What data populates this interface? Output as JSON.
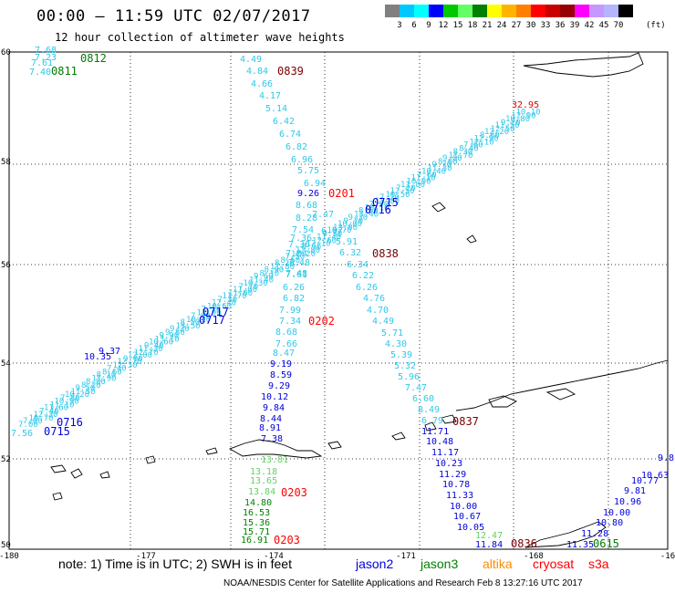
{
  "header": {
    "title": "00:00 — 11:59 UTC 02/07/2017",
    "subtitle": "12 hour collection of altimeter wave heights"
  },
  "colorbar": {
    "labels": [
      "3",
      "6",
      "9",
      "12",
      "15",
      "18",
      "21",
      "24",
      "27",
      "30",
      "33",
      "36",
      "39",
      "42",
      "45",
      "70"
    ],
    "colors": [
      "#808080",
      "#00c8ff",
      "#00ffff",
      "#0000ff",
      "#00c800",
      "#64ff64",
      "#008000",
      "#ffff00",
      "#ffb400",
      "#ff8000",
      "#ff0000",
      "#c80000",
      "#960000",
      "#ff00ff",
      "#c896ff",
      "#b4b4ff",
      "#000000"
    ],
    "units": "(ft)"
  },
  "map": {
    "lat_labels": [
      "60",
      "58",
      "56",
      "54",
      "52",
      "50"
    ],
    "lon_labels": [
      "-180",
      "-177",
      "-174",
      "-171",
      "-168",
      "-16"
    ]
  },
  "times": [
    {
      "t": "0812",
      "c": "#007a00"
    },
    {
      "t": "0811",
      "c": "#007a00"
    },
    {
      "t": "0839",
      "c": "#7a0000"
    },
    {
      "t": "0201",
      "c": "#ff0000"
    },
    {
      "t": "0715",
      "c": "#0000dd"
    },
    {
      "t": "0716",
      "c": "#0000dd"
    },
    {
      "t": "0838",
      "c": "#7a0000"
    },
    {
      "t": "0717",
      "c": "#0000dd"
    },
    {
      "t": "0717",
      "c": "#0000dd"
    },
    {
      "t": "0202",
      "c": "#ff0000"
    },
    {
      "t": "0716",
      "c": "#0000dd"
    },
    {
      "t": "0715",
      "c": "#0000dd"
    },
    {
      "t": "0837",
      "c": "#7a0000"
    },
    {
      "t": "0203",
      "c": "#ff0000"
    },
    {
      "t": "0203",
      "c": "#ff0000"
    },
    {
      "t": "0836",
      "c": "#7a0000"
    },
    {
      "t": "0615",
      "c": "#007a00"
    }
  ],
  "tracks": {
    "cryosat_top_label": "32.95",
    "topleft": [
      "7.68",
      "7.23",
      "7.61",
      "7.40"
    ],
    "cryosat_lower": [
      "9.37",
      "10.35",
      "7.56"
    ],
    "track_a": [
      "4.49",
      "4.84",
      "4.66",
      "4.17",
      "5.14",
      "6.42",
      "6.74",
      "6.82",
      "6.96",
      "5.75",
      "6.94",
      "9.26",
      "8.68",
      "8.28",
      "7.54",
      "7.36",
      "7.36",
      "7.04",
      "7.48",
      "7.48",
      "7.61",
      "6.26",
      "6.82",
      "7.99",
      "7.34",
      "8.68",
      "7.66",
      "8.47",
      "9.19",
      "8.59",
      "9.29",
      "10.12",
      "9.84",
      "8.44",
      "8.91",
      "7.38"
    ],
    "track_b": [
      "7.47",
      "6.07",
      "5.91",
      "6.32",
      "6.34",
      "6.22",
      "6.26",
      "4.76",
      "4.70",
      "4.49",
      "5.71",
      "4.30",
      "5.39",
      "5.32",
      "5.96",
      "7.47",
      "6.60",
      "8.49",
      "6.79"
    ],
    "jason3": [
      "13.81",
      "13.18",
      "13.65",
      "13.84",
      "14.80",
      "16.53",
      "15.36",
      "15.71",
      "16.91"
    ],
    "jason2_tail": [
      "11.71",
      "10.48",
      "11.17",
      "10.23",
      "11.29",
      "10.78",
      "11.33",
      "10.00",
      "10.67",
      "10.05",
      "11.84"
    ],
    "jason3_tail": [
      "12.47"
    ],
    "right_track": [
      "9.8",
      "10.63",
      "10.77",
      "9.81",
      "10.96",
      "10.00",
      "10.80",
      "11.28",
      "11.35"
    ]
  },
  "legend": {
    "note": "note: 1) Time is in UTC; 2) SWH is in feet",
    "sat1": "jason2",
    "sat2": "jason3",
    "sat3": "altika",
    "sat4": "cryosat",
    "sat5": "s3a"
  },
  "footer": "NOAA/NESDIS Center for Satellite Applications and Research   Feb  8 13:27:16 UTC 2017"
}
